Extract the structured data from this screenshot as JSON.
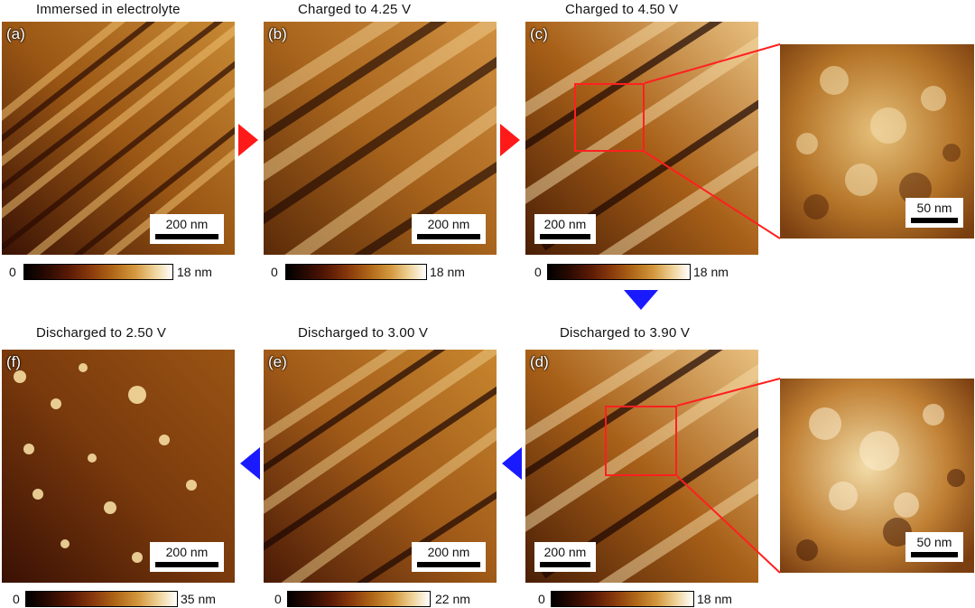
{
  "panels": {
    "a": {
      "title": "Immersed in electrolyte",
      "label": "(a)",
      "scale": "200 nm",
      "cbar_min": "0",
      "cbar_max": "18 nm"
    },
    "b": {
      "title": "Charged to 4.25 V",
      "label": "(b)",
      "scale": "200 nm",
      "cbar_min": "0",
      "cbar_max": "18 nm"
    },
    "c": {
      "title": "Charged to 4.50 V",
      "label": "(c)",
      "scale": "200 nm",
      "cbar_min": "0",
      "cbar_max": "18 nm"
    },
    "c_zoom": {
      "scale": "50 nm"
    },
    "d": {
      "title": "Discharged  to 3.90 V",
      "label": "(d)",
      "scale": "200 nm",
      "cbar_min": "0",
      "cbar_max": "18 nm"
    },
    "d_zoom": {
      "scale": "50 nm"
    },
    "e": {
      "title": "Discharged  to 3.00 V",
      "label": "(e)",
      "scale": "200 nm",
      "cbar_min": "0",
      "cbar_max": "22 nm"
    },
    "f": {
      "title": "Discharged  to 2.50 V",
      "label": "(f)",
      "scale": "200 nm",
      "cbar_min": "0",
      "cbar_max": "35 nm"
    }
  },
  "colors": {
    "forward_arrow": "#ff1a1a",
    "reverse_arrow": "#1a1aff",
    "roi": "#ff2020"
  }
}
